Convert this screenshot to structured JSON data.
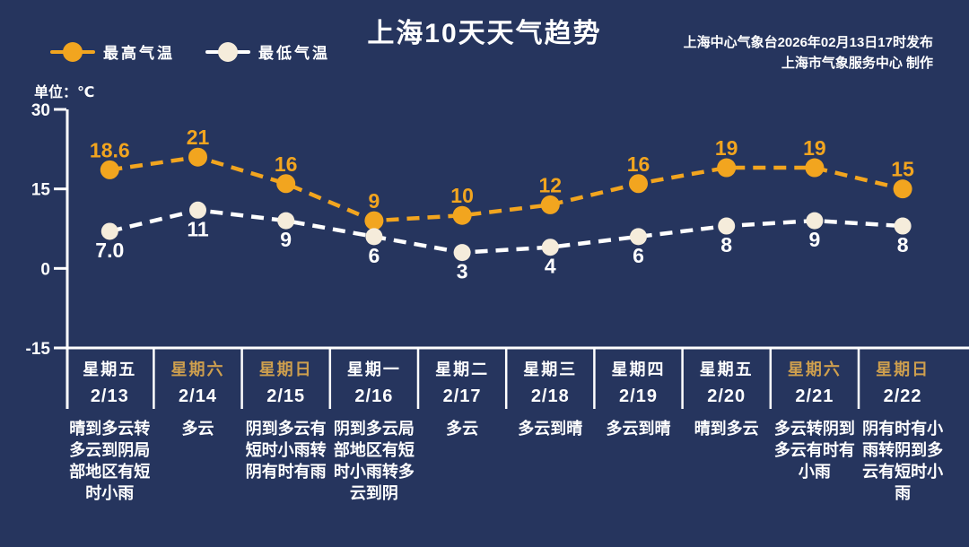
{
  "title": "上海10天天气趋势",
  "publisher": {
    "line1": "上海中心气象台2026年02月13日17时发布",
    "line2": "上海市气象服务中心  制作"
  },
  "legend": {
    "high_label": "最高气温",
    "low_label": "最低气温"
  },
  "unit_label": "单位：℃",
  "colors": {
    "background": "#26355E",
    "high_series": "#F2A51F",
    "low_series_line": "#FFFFFF",
    "low_series_dot": "#F5ECDB",
    "axis": "#FFFFFF",
    "text": "#FFFFFF",
    "weekend_gold": "#CE9F4E"
  },
  "chart_data": {
    "type": "line",
    "title": "上海10天天气趋势",
    "x": [
      "2/13",
      "2/14",
      "2/15",
      "2/16",
      "2/17",
      "2/18",
      "2/19",
      "2/20",
      "2/21",
      "2/22"
    ],
    "series": [
      {
        "name": "最高气温",
        "values": [
          18.6,
          21,
          16,
          9,
          10,
          12,
          16,
          19,
          19,
          15
        ],
        "labels": [
          "18.6",
          "21",
          "16",
          "9",
          "10",
          "12",
          "16",
          "19",
          "19",
          "15"
        ],
        "color": "#F2A51F",
        "style": "dashed"
      },
      {
        "name": "最低气温",
        "values": [
          7.0,
          11,
          9,
          6,
          3,
          4,
          6,
          8,
          9,
          8
        ],
        "labels": [
          "7.0",
          "11",
          "9",
          "6",
          "3",
          "4",
          "6",
          "8",
          "9",
          "8"
        ],
        "color": "#FFFFFF",
        "style": "dashed"
      }
    ],
    "ylabel": "单位：℃",
    "y_ticks": [
      30,
      15,
      0,
      -15
    ],
    "ylim": [
      -15,
      30
    ],
    "grid": false,
    "legend_position": "top-left"
  },
  "days": [
    {
      "weekday": "星期五",
      "date": "2/13",
      "weather": "晴到多云转多云到阴局部地区有短时小雨",
      "is_weekend": false
    },
    {
      "weekday": "星期六",
      "date": "2/14",
      "weather": "多云",
      "is_weekend": true
    },
    {
      "weekday": "星期日",
      "date": "2/15",
      "weather": "阴到多云有短时小雨转阴有时有雨",
      "is_weekend": true
    },
    {
      "weekday": "星期一",
      "date": "2/16",
      "weather": "阴到多云局部地区有短时小雨转多云到阴",
      "is_weekend": false
    },
    {
      "weekday": "星期二",
      "date": "2/17",
      "weather": "多云",
      "is_weekend": false
    },
    {
      "weekday": "星期三",
      "date": "2/18",
      "weather": "多云到晴",
      "is_weekend": false
    },
    {
      "weekday": "星期四",
      "date": "2/19",
      "weather": "多云到晴",
      "is_weekend": false
    },
    {
      "weekday": "星期五",
      "date": "2/20",
      "weather": "晴到多云",
      "is_weekend": false
    },
    {
      "weekday": "星期六",
      "date": "2/21",
      "weather": "多云转阴到多云有时有小雨",
      "is_weekend": true
    },
    {
      "weekday": "星期日",
      "date": "2/22",
      "weather": "阴有时有小雨转阴到多云有短时小雨",
      "is_weekend": true
    }
  ]
}
